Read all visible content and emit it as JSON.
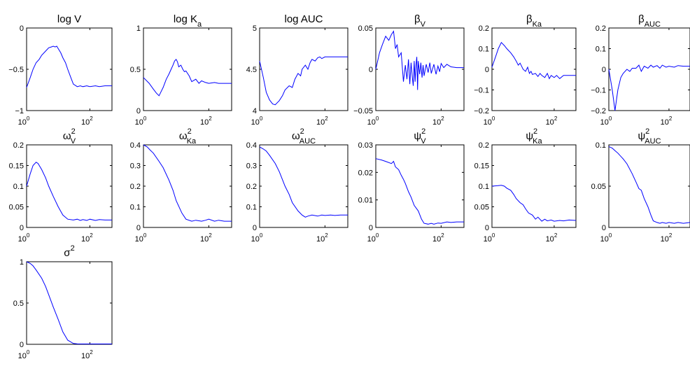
{
  "chart_data": [
    {
      "type": "line",
      "title": {
        "base": "log V",
        "sub": "",
        "sup": ""
      },
      "xscale": "log",
      "xlim": [
        1,
        500
      ],
      "xticks": [
        {
          "base": "10",
          "exp": "0",
          "value": 1
        },
        {
          "base": "10",
          "exp": "2",
          "value": 100
        }
      ],
      "ylim": [
        -1,
        0
      ],
      "yticks": [
        {
          "label": "0",
          "value": 0
        },
        {
          "label": "−0.5",
          "value": -0.5
        },
        {
          "label": "−1",
          "value": -1
        }
      ],
      "x": [
        1,
        1.3,
        1.6,
        2,
        2.5,
        3,
        4,
        5,
        6,
        7,
        8,
        9,
        10,
        12,
        14,
        17,
        20,
        25,
        30,
        40,
        50,
        60,
        80,
        100,
        150,
        200,
        300,
        500
      ],
      "y": [
        -0.72,
        -0.6,
        -0.5,
        -0.42,
        -0.38,
        -0.33,
        -0.28,
        -0.24,
        -0.23,
        -0.22,
        -0.23,
        -0.22,
        -0.25,
        -0.3,
        -0.36,
        -0.42,
        -0.5,
        -0.6,
        -0.68,
        -0.71,
        -0.7,
        -0.71,
        -0.7,
        -0.71,
        -0.7,
        -0.71,
        -0.7,
        -0.7
      ]
    },
    {
      "type": "line",
      "title": {
        "base": "log K",
        "sub": "a",
        "sup": ""
      },
      "xscale": "log",
      "xlim": [
        1,
        500
      ],
      "xticks": [
        {
          "base": "10",
          "exp": "0",
          "value": 1
        },
        {
          "base": "10",
          "exp": "2",
          "value": 100
        }
      ],
      "ylim": [
        0,
        1
      ],
      "yticks": [
        {
          "label": "1",
          "value": 1
        },
        {
          "label": "0.5",
          "value": 0.5
        },
        {
          "label": "0",
          "value": 0
        }
      ],
      "x": [
        1,
        1.5,
        2,
        2.5,
        3,
        4,
        5,
        6,
        7,
        8,
        9,
        10,
        11,
        12,
        14,
        16,
        18,
        20,
        25,
        30,
        40,
        50,
        60,
        80,
        100,
        150,
        200,
        300,
        500
      ],
      "y": [
        0.4,
        0.33,
        0.26,
        0.21,
        0.18,
        0.28,
        0.38,
        0.44,
        0.5,
        0.55,
        0.6,
        0.62,
        0.59,
        0.53,
        0.55,
        0.5,
        0.47,
        0.48,
        0.42,
        0.35,
        0.38,
        0.33,
        0.36,
        0.34,
        0.33,
        0.34,
        0.33,
        0.33,
        0.33
      ]
    },
    {
      "type": "line",
      "title": {
        "base": "log AUC",
        "sub": "",
        "sup": ""
      },
      "xscale": "log",
      "xlim": [
        1,
        500
      ],
      "xticks": [
        {
          "base": "10",
          "exp": "0",
          "value": 1
        },
        {
          "base": "10",
          "exp": "2",
          "value": 100
        }
      ],
      "ylim": [
        4,
        5
      ],
      "yticks": [
        {
          "label": "5",
          "value": 5
        },
        {
          "label": "4.5",
          "value": 4.5
        },
        {
          "label": "4",
          "value": 4
        }
      ],
      "x": [
        1,
        1.3,
        1.6,
        2,
        2.5,
        3,
        4,
        5,
        6,
        8,
        10,
        12,
        15,
        18,
        20,
        25,
        30,
        35,
        40,
        50,
        60,
        70,
        80,
        100,
        150,
        200,
        300,
        500
      ],
      "y": [
        4.6,
        4.4,
        4.22,
        4.13,
        4.08,
        4.07,
        4.12,
        4.18,
        4.25,
        4.3,
        4.28,
        4.38,
        4.45,
        4.42,
        4.5,
        4.55,
        4.5,
        4.58,
        4.62,
        4.6,
        4.64,
        4.65,
        4.63,
        4.65,
        4.65,
        4.65,
        4.65,
        4.65
      ]
    },
    {
      "type": "line",
      "title": {
        "base": "β",
        "sub": "V",
        "sup": ""
      },
      "xscale": "log",
      "xlim": [
        1,
        500
      ],
      "xticks": [
        {
          "base": "10",
          "exp": "0",
          "value": 1
        },
        {
          "base": "10",
          "exp": "2",
          "value": 100
        }
      ],
      "ylim": [
        -0.05,
        0.05
      ],
      "yticks": [
        {
          "label": "0.05",
          "value": 0.05
        },
        {
          "label": "0",
          "value": 0
        },
        {
          "label": "−0.05",
          "value": -0.05
        }
      ],
      "x": [
        1,
        1.3,
        1.6,
        2,
        2.5,
        3,
        3.5,
        4,
        4.5,
        5,
        6,
        7,
        8,
        9,
        10,
        11,
        12,
        13,
        14,
        15,
        16,
        17,
        18,
        19,
        20,
        22,
        24,
        26,
        28,
        30,
        35,
        40,
        45,
        50,
        60,
        70,
        80,
        90,
        100,
        120,
        150,
        200,
        300,
        500
      ],
      "y": [
        0,
        0.02,
        0.03,
        0.04,
        0.035,
        0.042,
        0.046,
        0.025,
        0.03,
        0.015,
        0.02,
        -0.015,
        0.005,
        -0.012,
        0.012,
        -0.018,
        0.008,
        -0.008,
        -0.02,
        0.01,
        -0.015,
        0.005,
        0.015,
        -0.025,
        0.01,
        -0.006,
        0.008,
        -0.01,
        0.005,
        -0.008,
        0.006,
        -0.004,
        0.008,
        -0.005,
        0.006,
        -0.006,
        0.004,
        -0.003,
        0.007,
        0.002,
        0.006,
        0.003,
        0.002,
        0.002
      ]
    },
    {
      "type": "line",
      "title": {
        "base": "β",
        "sub": "Ka",
        "sup": ""
      },
      "xscale": "log",
      "xlim": [
        1,
        500
      ],
      "xticks": [
        {
          "base": "10",
          "exp": "0",
          "value": 1
        },
        {
          "base": "10",
          "exp": "2",
          "value": 100
        }
      ],
      "ylim": [
        -0.2,
        0.2
      ],
      "yticks": [
        {
          "label": "0.2",
          "value": 0.2
        },
        {
          "label": "0.1",
          "value": 0.1
        },
        {
          "label": "0",
          "value": 0
        },
        {
          "label": "−0.1",
          "value": -0.1
        },
        {
          "label": "−0.2",
          "value": -0.2
        }
      ],
      "x": [
        1,
        1.3,
        1.6,
        2,
        2.5,
        3,
        4,
        5,
        6,
        7,
        8,
        10,
        12,
        14,
        16,
        18,
        20,
        25,
        30,
        35,
        40,
        50,
        60,
        70,
        80,
        100,
        120,
        150,
        200,
        300,
        500
      ],
      "y": [
        0.01,
        0.06,
        0.1,
        0.13,
        0.115,
        0.1,
        0.08,
        0.06,
        0.04,
        0.02,
        0.03,
        0.0,
        -0.01,
        0.01,
        -0.02,
        -0.01,
        -0.025,
        -0.02,
        -0.035,
        -0.02,
        -0.03,
        -0.04,
        -0.02,
        -0.045,
        -0.03,
        -0.04,
        -0.03,
        -0.045,
        -0.03,
        -0.03,
        -0.03
      ]
    },
    {
      "type": "line",
      "title": {
        "base": "β",
        "sub": "AUC",
        "sup": ""
      },
      "xscale": "log",
      "xlim": [
        1,
        500
      ],
      "xticks": [
        {
          "base": "10",
          "exp": "0",
          "value": 1
        },
        {
          "base": "10",
          "exp": "2",
          "value": 100
        }
      ],
      "ylim": [
        -0.2,
        0.2
      ],
      "yticks": [
        {
          "label": "0.2",
          "value": 0.2
        },
        {
          "label": "0.1",
          "value": 0.1
        },
        {
          "label": "0",
          "value": 0
        },
        {
          "label": "−0.1",
          "value": -0.1
        },
        {
          "label": "−0.2",
          "value": -0.2
        }
      ],
      "x": [
        1,
        1.3,
        1.6,
        2,
        2.5,
        3,
        4,
        5,
        6,
        8,
        10,
        12,
        15,
        20,
        25,
        30,
        40,
        50,
        60,
        80,
        100,
        150,
        200,
        300,
        500
      ],
      "y": [
        0.0,
        -0.1,
        -0.2,
        -0.1,
        -0.04,
        -0.02,
        0.0,
        -0.01,
        0.005,
        0.005,
        0.02,
        -0.01,
        0.015,
        0.005,
        0.02,
        0.01,
        0.018,
        0.005,
        0.02,
        0.01,
        0.015,
        0.01,
        0.018,
        0.015,
        0.015
      ]
    },
    {
      "type": "line",
      "title": {
        "base": "ω",
        "sub": "V",
        "sup": "2"
      },
      "xscale": "log",
      "xlim": [
        1,
        500
      ],
      "xticks": [
        {
          "base": "10",
          "exp": "0",
          "value": 1
        },
        {
          "base": "10",
          "exp": "2",
          "value": 100
        }
      ],
      "ylim": [
        0,
        0.2
      ],
      "yticks": [
        {
          "label": "0.2",
          "value": 0.2
        },
        {
          "label": "0.15",
          "value": 0.15
        },
        {
          "label": "0.1",
          "value": 0.1
        },
        {
          "label": "0.05",
          "value": 0.05
        },
        {
          "label": "0",
          "value": 0
        }
      ],
      "x": [
        1,
        1.3,
        1.6,
        2,
        2.3,
        3,
        4,
        5,
        7,
        10,
        14,
        20,
        30,
        40,
        50,
        60,
        70,
        80,
        100,
        150,
        200,
        300,
        500
      ],
      "y": [
        0.1,
        0.13,
        0.15,
        0.158,
        0.155,
        0.14,
        0.12,
        0.1,
        0.075,
        0.05,
        0.03,
        0.02,
        0.018,
        0.02,
        0.017,
        0.019,
        0.018,
        0.017,
        0.02,
        0.017,
        0.019,
        0.018,
        0.018
      ]
    },
    {
      "type": "line",
      "title": {
        "base": "ω",
        "sub": "Ka",
        "sup": "2"
      },
      "xscale": "log",
      "xlim": [
        1,
        500
      ],
      "xticks": [
        {
          "base": "10",
          "exp": "0",
          "value": 1
        },
        {
          "base": "10",
          "exp": "2",
          "value": 100
        }
      ],
      "ylim": [
        0,
        0.4
      ],
      "yticks": [
        {
          "label": "0.4",
          "value": 0.4
        },
        {
          "label": "0.3",
          "value": 0.3
        },
        {
          "label": "0.2",
          "value": 0.2
        },
        {
          "label": "0.1",
          "value": 0.1
        },
        {
          "label": "0",
          "value": 0
        }
      ],
      "x": [
        1,
        1.3,
        1.6,
        2,
        3,
        4,
        6,
        8,
        10,
        15,
        20,
        30,
        40,
        60,
        80,
        100,
        150,
        200,
        300,
        500
      ],
      "y": [
        0.4,
        0.39,
        0.375,
        0.36,
        0.32,
        0.29,
        0.23,
        0.18,
        0.13,
        0.07,
        0.04,
        0.03,
        0.035,
        0.03,
        0.035,
        0.04,
        0.03,
        0.035,
        0.03,
        0.03
      ]
    },
    {
      "type": "line",
      "title": {
        "base": "ω",
        "sub": "AUC",
        "sup": "2"
      },
      "xscale": "log",
      "xlim": [
        1,
        500
      ],
      "xticks": [
        {
          "base": "10",
          "exp": "0",
          "value": 1
        },
        {
          "base": "10",
          "exp": "2",
          "value": 100
        }
      ],
      "ylim": [
        0,
        0.4
      ],
      "yticks": [
        {
          "label": "0.4",
          "value": 0.4
        },
        {
          "label": "0.3",
          "value": 0.3
        },
        {
          "label": "0.2",
          "value": 0.2
        },
        {
          "label": "0.1",
          "value": 0.1
        },
        {
          "label": "0",
          "value": 0
        }
      ],
      "x": [
        1,
        1.3,
        1.6,
        2,
        3,
        4,
        6,
        8,
        10,
        15,
        20,
        25,
        30,
        40,
        60,
        80,
        100,
        150,
        200,
        300,
        500
      ],
      "y": [
        0.39,
        0.38,
        0.37,
        0.35,
        0.31,
        0.27,
        0.2,
        0.16,
        0.12,
        0.08,
        0.06,
        0.05,
        0.055,
        0.06,
        0.055,
        0.06,
        0.058,
        0.06,
        0.058,
        0.06,
        0.06
      ]
    },
    {
      "type": "line",
      "title": {
        "base": "ψ",
        "sub": "V",
        "sup": "2"
      },
      "xscale": "log",
      "xlim": [
        1,
        500
      ],
      "xticks": [
        {
          "base": "10",
          "exp": "0",
          "value": 1
        },
        {
          "base": "10",
          "exp": "2",
          "value": 100
        }
      ],
      "ylim": [
        0,
        0.03
      ],
      "yticks": [
        {
          "label": "0.03",
          "value": 0.03
        },
        {
          "label": "0.02",
          "value": 0.02
        },
        {
          "label": "0.01",
          "value": 0.01
        },
        {
          "label": "0",
          "value": 0
        }
      ],
      "x": [
        1,
        1.5,
        2,
        3,
        3.5,
        4,
        5,
        6,
        7,
        8,
        10,
        12,
        15,
        20,
        25,
        30,
        40,
        50,
        60,
        80,
        100,
        150,
        200,
        300,
        500
      ],
      "y": [
        0.025,
        0.0245,
        0.024,
        0.0232,
        0.024,
        0.022,
        0.021,
        0.019,
        0.0175,
        0.016,
        0.013,
        0.011,
        0.008,
        0.006,
        0.003,
        0.0015,
        0.0012,
        0.0015,
        0.0012,
        0.0016,
        0.0015,
        0.002,
        0.0018,
        0.002,
        0.002
      ]
    },
    {
      "type": "line",
      "title": {
        "base": "ψ",
        "sub": "Ka",
        "sup": "2"
      },
      "xscale": "log",
      "xlim": [
        1,
        500
      ],
      "xticks": [
        {
          "base": "10",
          "exp": "0",
          "value": 1
        },
        {
          "base": "10",
          "exp": "2",
          "value": 100
        }
      ],
      "ylim": [
        0,
        0.2
      ],
      "yticks": [
        {
          "label": "0.2",
          "value": 0.2
        },
        {
          "label": "0.15",
          "value": 0.15
        },
        {
          "label": "0.1",
          "value": 0.1
        },
        {
          "label": "0.05",
          "value": 0.05
        },
        {
          "label": "0",
          "value": 0
        }
      ],
      "x": [
        1,
        1.5,
        2,
        2.5,
        3,
        4,
        5,
        6,
        8,
        10,
        12,
        15,
        20,
        25,
        30,
        40,
        50,
        60,
        80,
        100,
        150,
        200,
        300,
        500
      ],
      "y": [
        0.1,
        0.101,
        0.102,
        0.1,
        0.095,
        0.09,
        0.08,
        0.07,
        0.06,
        0.055,
        0.045,
        0.035,
        0.03,
        0.02,
        0.025,
        0.015,
        0.02,
        0.016,
        0.018,
        0.015,
        0.017,
        0.016,
        0.018,
        0.017
      ]
    },
    {
      "type": "line",
      "title": {
        "base": "ψ",
        "sub": "AUC",
        "sup": "2"
      },
      "xscale": "log",
      "xlim": [
        1,
        500
      ],
      "xticks": [
        {
          "base": "10",
          "exp": "0",
          "value": 1
        },
        {
          "base": "10",
          "exp": "2",
          "value": 100
        }
      ],
      "ylim": [
        0,
        0.1
      ],
      "yticks": [
        {
          "label": "0.1",
          "value": 0.1
        },
        {
          "label": "0.05",
          "value": 0.05
        },
        {
          "label": "0",
          "value": 0
        }
      ],
      "x": [
        1,
        1.3,
        1.6,
        2,
        3,
        4,
        6,
        8,
        10,
        12,
        15,
        20,
        25,
        30,
        40,
        50,
        60,
        80,
        100,
        150,
        200,
        300,
        500
      ],
      "y": [
        0.098,
        0.096,
        0.093,
        0.09,
        0.083,
        0.077,
        0.065,
        0.055,
        0.047,
        0.045,
        0.035,
        0.025,
        0.015,
        0.008,
        0.006,
        0.005,
        0.006,
        0.005,
        0.006,
        0.005,
        0.006,
        0.005,
        0.006
      ]
    },
    {
      "type": "line",
      "title": {
        "base": "σ",
        "sub": "",
        "sup": "2"
      },
      "xscale": "log",
      "xlim": [
        1,
        500
      ],
      "xticks": [
        {
          "base": "10",
          "exp": "0",
          "value": 1
        },
        {
          "base": "10",
          "exp": "2",
          "value": 100
        }
      ],
      "ylim": [
        0,
        1
      ],
      "yticks": [
        {
          "label": "1",
          "value": 1
        },
        {
          "label": "0.5",
          "value": 0.5
        },
        {
          "label": "0",
          "value": 0
        }
      ],
      "x": [
        1,
        1.3,
        1.6,
        2,
        3,
        4,
        5,
        7,
        10,
        14,
        20,
        30,
        40,
        60,
        100,
        200,
        500
      ],
      "y": [
        1,
        0.98,
        0.95,
        0.9,
        0.8,
        0.7,
        0.6,
        0.45,
        0.3,
        0.15,
        0.05,
        0.01,
        0.005,
        0.004,
        0.004,
        0.004,
        0.004
      ]
    }
  ]
}
